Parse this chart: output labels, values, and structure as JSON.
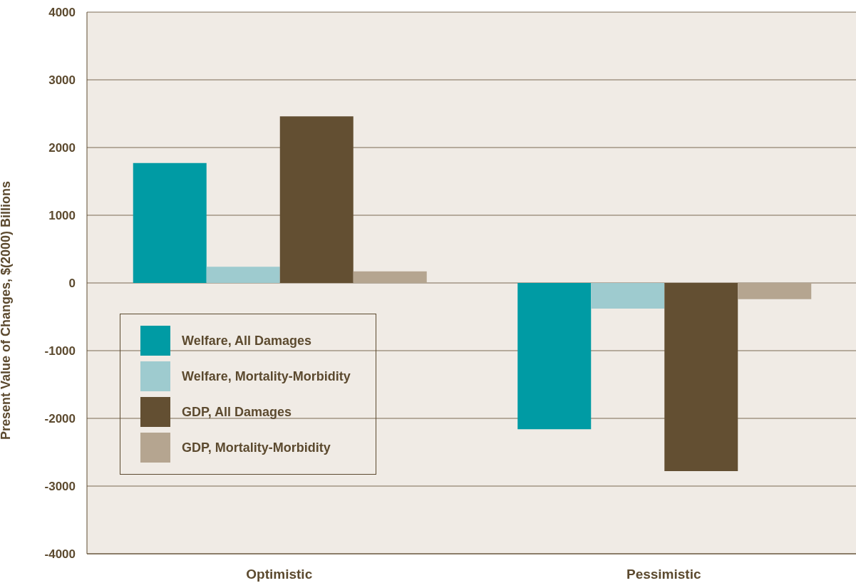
{
  "chart_data": {
    "type": "bar",
    "ylabel": "Present Value of Changes, $(2000) Billions",
    "categories": [
      "Optimistic",
      "Pessimistic"
    ],
    "series": [
      {
        "name": "Welfare, All Damages",
        "color": "#009ba4",
        "values": [
          1770,
          -2160
        ]
      },
      {
        "name": "Welfare, Mortality-Morbidity",
        "color": "#9ecbcf",
        "values": [
          240,
          -380
        ]
      },
      {
        "name": "GDP, All Damages",
        "color": "#634f32",
        "values": [
          2460,
          -2780
        ]
      },
      {
        "name": "GDP, Mortality-Morbidity",
        "color": "#b5a590",
        "values": [
          170,
          -240
        ]
      }
    ],
    "ylim": [
      -4000,
      4000
    ],
    "yticks": [
      -4000,
      -3000,
      -2000,
      -1000,
      0,
      1000,
      2000,
      3000,
      4000
    ],
    "grid": "y",
    "legend": "bottom left"
  }
}
